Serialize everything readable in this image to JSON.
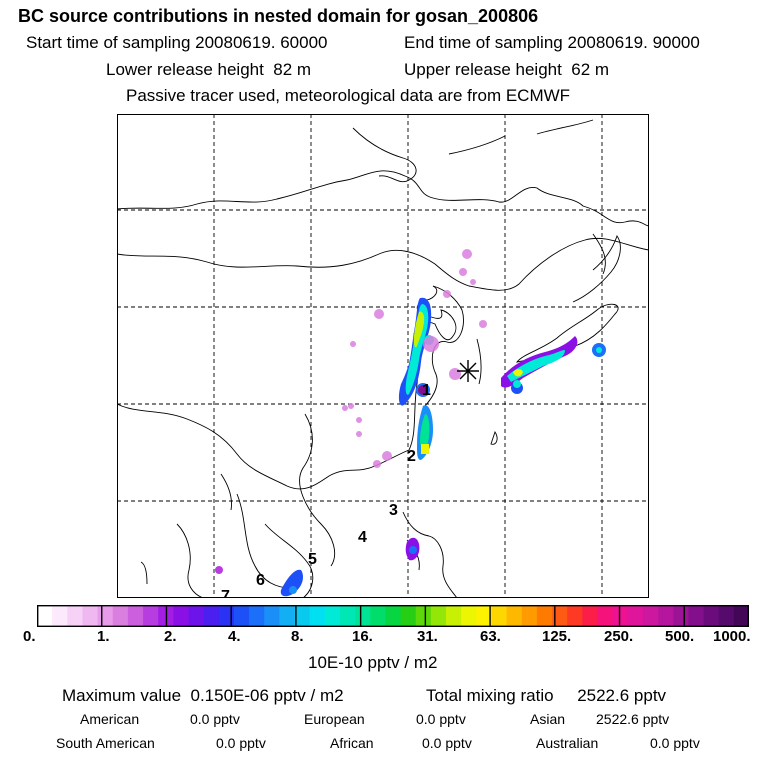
{
  "title": "BC  source contributions in nested domain for gosan_200806",
  "header": {
    "start_time_label": "Start time of sampling",
    "start_time_value": "20080619. 60000",
    "end_time_label": "End time of sampling",
    "end_time_value": "20080619. 90000",
    "lower_release_label": "Lower release height",
    "lower_release_value": "82 m",
    "upper_release_label": "Upper release height",
    "upper_release_value": "62 m",
    "tracer_note": "Passive tracer used, meteorological data are from ECMWF"
  },
  "map": {
    "region_labels": [
      "1",
      "2",
      "3",
      "4",
      "5",
      "6",
      "7"
    ],
    "receptor": "gosan"
  },
  "colorbar": {
    "tick_labels": [
      "0.",
      "1.",
      "2.",
      "4.",
      "8.",
      "16.",
      "31.",
      "63.",
      "125.",
      "250.",
      "500.",
      "1000."
    ],
    "colors": [
      "#ffffff",
      "#fce9fc",
      "#f7d2f7",
      "#f0b8f0",
      "#e79be8",
      "#da7ee0",
      "#cb5fde",
      "#b83de0",
      "#a21ee4",
      "#8b10e6",
      "#6d14ea",
      "#4a1ff0",
      "#2a32f4",
      "#1d50f7",
      "#1b6ff8",
      "#1a8ff7",
      "#14aef4",
      "#0ac9ef",
      "#00e0f0",
      "#00ead7",
      "#00e7b6",
      "#00e394",
      "#00dd6a",
      "#07d642",
      "#26ce14",
      "#5dd90a",
      "#93e607",
      "#c8f004",
      "#ecf603",
      "#fff200",
      "#ffd700",
      "#ffb800",
      "#ff9a00",
      "#ff7a00",
      "#ff5a14",
      "#ff3a24",
      "#fb1e48",
      "#f5127a",
      "#ec1292",
      "#df159c",
      "#cc179f",
      "#b6169d",
      "#9d1396",
      "#840f8c",
      "#6b0c7d",
      "#560a6b",
      "#420857"
    ],
    "units": "10E-10 pptv / m2"
  },
  "stats": {
    "max_label": "Maximum value",
    "max_value": "0.150E-06 pptv / m2",
    "total_label": "Total mixing ratio",
    "total_value": "2522.6 pptv",
    "regions": [
      {
        "name": "American",
        "value": "0.0 pptv"
      },
      {
        "name": "European",
        "value": "0.0 pptv"
      },
      {
        "name": "Asian",
        "value": "2522.6 pptv"
      },
      {
        "name": "South American",
        "value": "0.0 pptv"
      },
      {
        "name": "African",
        "value": "0.0 pptv"
      },
      {
        "name": "Australian",
        "value": "0.0 pptv"
      }
    ]
  }
}
